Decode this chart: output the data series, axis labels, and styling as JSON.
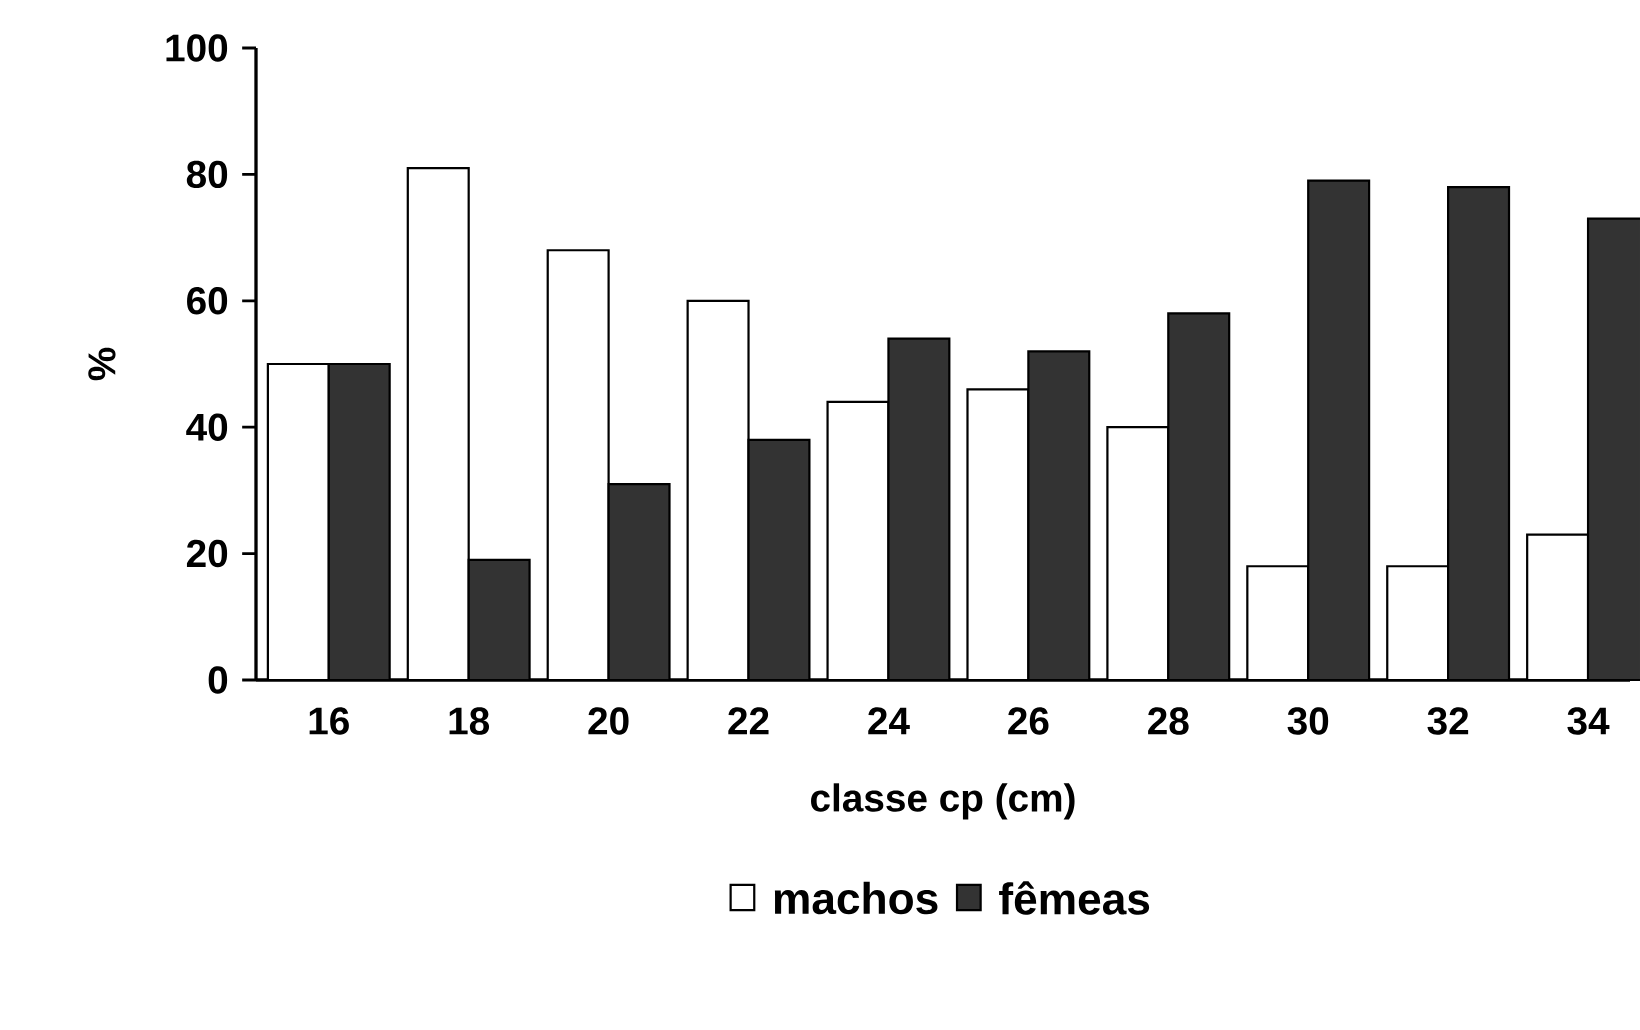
{
  "chart_data": {
    "type": "bar",
    "xlabel": "classe cp (cm)",
    "ylabel": "%",
    "categories": [
      "16",
      "18",
      "20",
      "22",
      "24",
      "26",
      "28",
      "30",
      "32",
      "34"
    ],
    "series": [
      {
        "name": "machos",
        "color": "#ffffff",
        "values": [
          50,
          81,
          68,
          60,
          44,
          46,
          40,
          18,
          18,
          23
        ]
      },
      {
        "name": "fêmeas",
        "color": "#333333",
        "values": [
          50,
          19,
          31,
          38,
          54,
          52,
          58,
          79,
          78,
          73
        ]
      }
    ],
    "ylim": [
      0,
      100
    ],
    "yticks": [
      0,
      20,
      40,
      60,
      80,
      100
    ],
    "grid": false,
    "legend": "bottom"
  }
}
